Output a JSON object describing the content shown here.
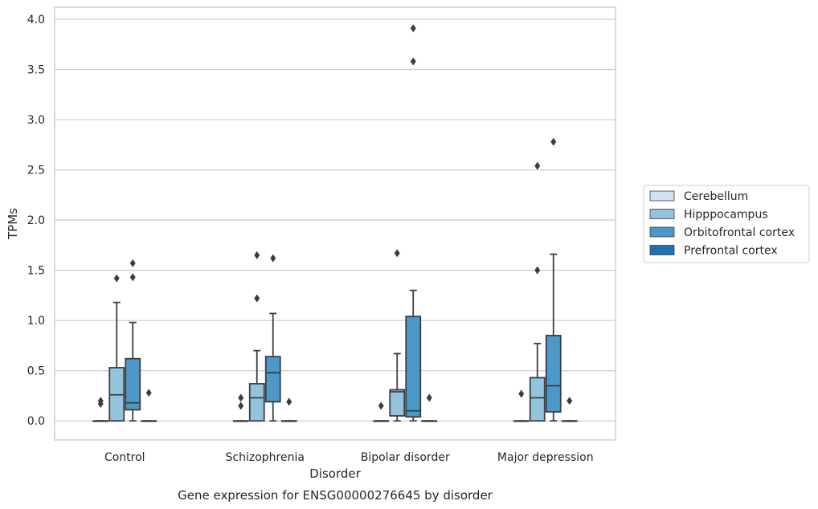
{
  "chart_data": {
    "type": "box",
    "caption": "Gene expression for ENSG00000276645 by disorder",
    "xlabel": "Disorder",
    "ylabel": "TPMs",
    "ylim": [
      -0.19,
      4.12
    ],
    "yticks": [
      0.0,
      0.5,
      1.0,
      1.5,
      2.0,
      2.5,
      3.0,
      3.5,
      4.0
    ],
    "ytick_labels": [
      "0.0",
      "0.5",
      "1.0",
      "1.5",
      "2.0",
      "2.5",
      "3.0",
      "3.5",
      "4.0"
    ],
    "grid": true,
    "legend_position": "right",
    "categories": [
      "Control",
      "Schizophrenia",
      "Bipolar disorder",
      "Major depression"
    ],
    "series": [
      {
        "name": "Cerebellum",
        "color": "#cfe1f2",
        "boxes": [
          {
            "q1": 0.0,
            "median": 0.0,
            "q3": 0.0,
            "whisker_low": 0.0,
            "whisker_high": 0.0,
            "outliers": [
              0.17,
              0.2
            ]
          },
          {
            "q1": 0.0,
            "median": 0.0,
            "q3": 0.0,
            "whisker_low": 0.0,
            "whisker_high": 0.0,
            "outliers": [
              0.15,
              0.23
            ]
          },
          {
            "q1": 0.0,
            "median": 0.0,
            "q3": 0.0,
            "whisker_low": 0.0,
            "whisker_high": 0.0,
            "outliers": [
              0.15
            ]
          },
          {
            "q1": 0.0,
            "median": 0.0,
            "q3": 0.0,
            "whisker_low": 0.0,
            "whisker_high": 0.0,
            "outliers": [
              0.27
            ]
          }
        ]
      },
      {
        "name": "Hipppocampus",
        "color": "#93c4de",
        "boxes": [
          {
            "q1": 0.0,
            "median": 0.26,
            "q3": 0.53,
            "whisker_low": 0.0,
            "whisker_high": 1.18,
            "outliers": [
              1.42
            ]
          },
          {
            "q1": 0.0,
            "median": 0.23,
            "q3": 0.37,
            "whisker_low": 0.0,
            "whisker_high": 0.7,
            "outliers": [
              1.22,
              1.65
            ]
          },
          {
            "q1": 0.05,
            "median": 0.29,
            "q3": 0.31,
            "whisker_low": 0.0,
            "whisker_high": 0.67,
            "outliers": [
              1.67
            ]
          },
          {
            "q1": 0.0,
            "median": 0.23,
            "q3": 0.43,
            "whisker_low": 0.0,
            "whisker_high": 0.77,
            "outliers": [
              1.5,
              2.54
            ]
          }
        ]
      },
      {
        "name": "Orbitofrontal cortex",
        "color": "#4b98c9",
        "boxes": [
          {
            "q1": 0.11,
            "median": 0.18,
            "q3": 0.62,
            "whisker_low": 0.0,
            "whisker_high": 0.98,
            "outliers": [
              1.43,
              1.57
            ]
          },
          {
            "q1": 0.19,
            "median": 0.48,
            "q3": 0.64,
            "whisker_low": 0.0,
            "whisker_high": 1.07,
            "outliers": [
              1.62
            ]
          },
          {
            "q1": 0.04,
            "median": 0.1,
            "q3": 1.04,
            "whisker_low": 0.0,
            "whisker_high": 1.3,
            "outliers": [
              3.58,
              3.91
            ]
          },
          {
            "q1": 0.09,
            "median": 0.35,
            "q3": 0.85,
            "whisker_low": 0.0,
            "whisker_high": 1.66,
            "outliers": [
              2.78
            ]
          }
        ]
      },
      {
        "name": "Prefrontal cortex",
        "color": "#2171b5",
        "boxes": [
          {
            "q1": 0.0,
            "median": 0.0,
            "q3": 0.0,
            "whisker_low": 0.0,
            "whisker_high": 0.0,
            "outliers": [
              0.28
            ]
          },
          {
            "q1": 0.0,
            "median": 0.0,
            "q3": 0.0,
            "whisker_low": 0.0,
            "whisker_high": 0.0,
            "outliers": [
              0.19
            ]
          },
          {
            "q1": 0.0,
            "median": 0.0,
            "q3": 0.0,
            "whisker_low": 0.0,
            "whisker_high": 0.0,
            "outliers": [
              0.23
            ]
          },
          {
            "q1": 0.0,
            "median": 0.0,
            "q3": 0.0,
            "whisker_low": 0.0,
            "whisker_high": 0.0,
            "outliers": [
              0.2
            ]
          }
        ]
      }
    ]
  }
}
